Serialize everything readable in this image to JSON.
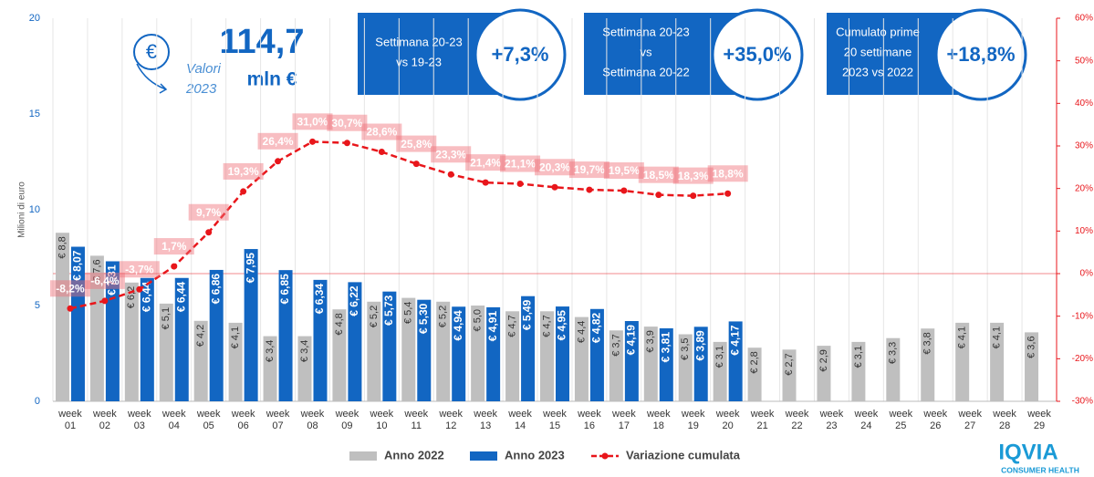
{
  "header": {
    "currency": "€",
    "subtitle_1": "Valori",
    "subtitle_2": "2023",
    "total": "114,7",
    "unit": "mln €"
  },
  "boxes": [
    {
      "lines": [
        "Settimana 20-23",
        "vs 19-23"
      ],
      "value": "+7,3%"
    },
    {
      "lines": [
        "Settimana 20-23",
        "vs",
        "Settimana 20-22"
      ],
      "value": "+35,0%"
    },
    {
      "lines": [
        "Cumulato prime",
        "20 settimane",
        "2023 vs 2022"
      ],
      "value": "+18,8%"
    }
  ],
  "logo": {
    "name": "IQVIA",
    "tagline": "CONSUMER HEALTH"
  },
  "chart_data": {
    "type": "bar_line",
    "ylabel": "Milioni di euro",
    "categories": [
      "week 01",
      "week 02",
      "week 03",
      "week 04",
      "week 05",
      "week 06",
      "week 07",
      "week 08",
      "week 09",
      "week 10",
      "week 11",
      "week 12",
      "week 13",
      "week 14",
      "week 15",
      "week 16",
      "week 17",
      "week 18",
      "week 19",
      "week 20",
      "week 21",
      "week 22",
      "week 23",
      "week 24",
      "week 25",
      "week 26",
      "week 27",
      "week 28",
      "week 29"
    ],
    "series": [
      {
        "name": "Anno 2022",
        "type": "bar",
        "color": "#bfbfbf",
        "values": [
          8.8,
          7.6,
          6.2,
          5.1,
          4.2,
          4.1,
          3.4,
          3.4,
          4.8,
          5.2,
          5.4,
          5.2,
          5.0,
          4.7,
          4.7,
          4.4,
          3.7,
          3.9,
          3.5,
          3.1,
          2.8,
          2.7,
          2.9,
          3.1,
          3.3,
          3.8,
          4.1,
          4.1,
          3.6
        ],
        "value_labels": [
          "€ 8,8",
          "€ 7,6",
          "€ 6,2",
          "€ 5,1",
          "€ 4,2",
          "€ 4,1",
          "€ 3,4",
          "€ 3,4",
          "€ 4,8",
          "€ 5,2",
          "€ 5,4",
          "€ 5,2",
          "€ 5,0",
          "€ 4,7",
          "€ 4,7",
          "€ 4,4",
          "€ 3,7",
          "€ 3,9",
          "€ 3,5",
          "€ 3,1",
          "€ 2,8",
          "€ 2,7",
          "€ 2,9",
          "€ 3,1",
          "€ 3,3",
          "€ 3,8",
          "€ 4,1",
          "€ 4,1",
          "€ 3,6"
        ]
      },
      {
        "name": "Anno 2023",
        "type": "bar",
        "color": "#1266c2",
        "values": [
          8.07,
          7.31,
          6.44,
          6.44,
          6.86,
          7.95,
          6.85,
          6.34,
          6.22,
          5.73,
          5.3,
          4.94,
          4.91,
          5.49,
          4.95,
          4.82,
          4.19,
          3.81,
          3.89,
          4.17,
          null,
          null,
          null,
          null,
          null,
          null,
          null,
          null,
          null
        ],
        "value_labels": [
          "€ 8,07",
          "€ 7,31",
          "€ 6,44",
          "€ 6,44",
          "€ 6,86",
          "€ 7,95",
          "€ 6,85",
          "€ 6,34",
          "€ 6,22",
          "€ 5,73",
          "€ 5,30",
          "€ 4,94",
          "€ 4,91",
          "€ 5,49",
          "€ 4,95",
          "€ 4,82",
          "€ 4,19",
          "€ 3,81",
          "€ 3,89",
          "€ 4,17",
          null,
          null,
          null,
          null,
          null,
          null,
          null,
          null,
          null
        ]
      },
      {
        "name": "Variazione cumulata",
        "type": "line",
        "axis": "y2",
        "color": "#e8161b",
        "values": [
          -8.2,
          -6.4,
          -3.7,
          1.7,
          9.7,
          19.3,
          26.4,
          31.0,
          30.7,
          28.6,
          25.8,
          23.3,
          21.4,
          21.1,
          20.3,
          19.7,
          19.5,
          18.5,
          18.3,
          18.8,
          null,
          null,
          null,
          null,
          null,
          null,
          null,
          null,
          null
        ],
        "value_labels": [
          "-8,2%",
          "-6,4%",
          "-3,7%",
          "1,7%",
          "9,7%",
          "19,3%",
          "26,4%",
          "31,0%",
          "30,7%",
          "28,6%",
          "25,8%",
          "23,3%",
          "21,4%",
          "21,1%",
          "20,3%",
          "19,7%",
          "19,5%",
          "18,5%",
          "18,3%",
          "18,8%",
          null,
          null,
          null,
          null,
          null,
          null,
          null,
          null,
          null
        ]
      }
    ],
    "ylim": [
      0,
      20
    ],
    "yticks": [
      0,
      5,
      10,
      15,
      20
    ],
    "y2lim": [
      -30,
      60
    ],
    "y2ticks": [
      {
        "value": -30,
        "label": "-30%"
      },
      {
        "value": -20,
        "label": "-20%"
      },
      {
        "value": -10,
        "label": "-10%"
      },
      {
        "value": 0,
        "label": "0%"
      },
      {
        "value": 10,
        "label": "10%"
      },
      {
        "value": 20,
        "label": "20%"
      },
      {
        "value": 30,
        "label": "30%"
      },
      {
        "value": 40,
        "label": "40%"
      },
      {
        "value": 50,
        "label": "50%"
      },
      {
        "value": 60,
        "label": "60%"
      }
    ],
    "legend": "bottom"
  }
}
